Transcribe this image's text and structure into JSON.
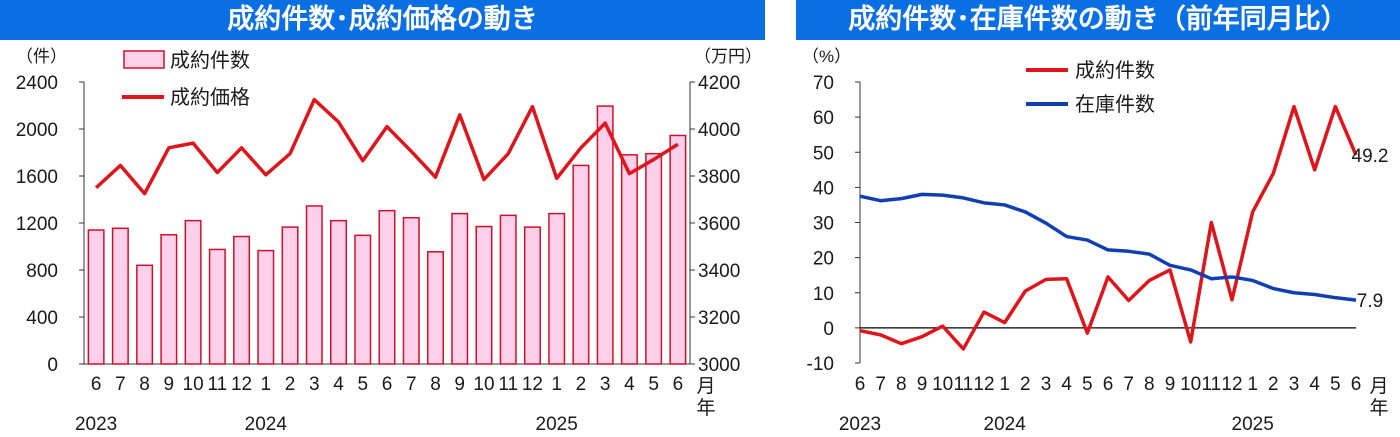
{
  "left_title": "成約件数･成約価格の動き",
  "right_title": "成約件数･在庫件数の動き（前年同月比）",
  "colors": {
    "banner": "#0a6fe2",
    "red": "#e0141b",
    "blue": "#0f3fb0",
    "bar_fill": "#ffd0ea",
    "bar_stroke": "#d0102a"
  },
  "chart_data": [
    {
      "type": "bar",
      "title": "成約件数･成約価格の動き",
      "categories": [
        "6",
        "7",
        "8",
        "9",
        "10",
        "11",
        "12",
        "1",
        "2",
        "3",
        "4",
        "5",
        "6",
        "7",
        "8",
        "9",
        "10",
        "11",
        "12",
        "1",
        "2",
        "3",
        "4",
        "5",
        "6"
      ],
      "year_labels": [
        {
          "label": "2023",
          "index": 0
        },
        {
          "label": "2024",
          "index": 7
        },
        {
          "label": "2025",
          "index": 19
        }
      ],
      "x_unit": "月",
      "x_unit2": "年",
      "y_left_unit": "（件）",
      "y_right_unit": "（万円）",
      "ylim_left": [
        0,
        2400
      ],
      "ylim_right": [
        3000,
        4200
      ],
      "y_left_ticks": [
        "0",
        "400",
        "800",
        "1200",
        "1600",
        "2000",
        "2400"
      ],
      "y_right_ticks": [
        "3000",
        "3200",
        "3400",
        "3600",
        "3800",
        "4000",
        "4200"
      ],
      "legend_placement": "top-left",
      "series": [
        {
          "name": "成約件数",
          "kind": "bar",
          "axis": "left",
          "values": [
            1140,
            1155,
            840,
            1100,
            1220,
            975,
            1085,
            965,
            1165,
            1345,
            1220,
            1095,
            1305,
            1245,
            955,
            1280,
            1170,
            1265,
            1165,
            1280,
            1690,
            2195,
            1780,
            1790,
            1945
          ]
        },
        {
          "name": "成約価格",
          "kind": "line",
          "axis": "right",
          "values": [
            3750,
            3845,
            3725,
            3920,
            3940,
            3815,
            3920,
            3805,
            3895,
            4125,
            4030,
            3865,
            4010,
            3905,
            3795,
            4060,
            3785,
            3895,
            4095,
            3790,
            3920,
            4025,
            3810,
            3870,
            3935
          ]
        }
      ]
    },
    {
      "type": "line",
      "title": "成約件数･在庫件数の動き（前年同月比）",
      "categories": [
        "6",
        "7",
        "8",
        "9",
        "10",
        "11",
        "12",
        "1",
        "2",
        "3",
        "4",
        "5",
        "6",
        "7",
        "8",
        "9",
        "10",
        "11",
        "12",
        "1",
        "2",
        "3",
        "4",
        "5",
        "6"
      ],
      "year_labels": [
        {
          "label": "2023",
          "index": 0
        },
        {
          "label": "2024",
          "index": 7
        },
        {
          "label": "2025",
          "index": 19
        }
      ],
      "x_unit": "月",
      "x_unit2": "年",
      "y_unit": "（%）",
      "ylim": [
        -10,
        70
      ],
      "y_ticks": [
        "-10",
        "0",
        "10",
        "20",
        "30",
        "40",
        "50",
        "60",
        "70"
      ],
      "legend_placement": "top-center",
      "series": [
        {
          "name": "成約件数",
          "values": [
            -0.8,
            -2,
            -4.5,
            -2.5,
            0.5,
            -6,
            4.5,
            1.5,
            10.5,
            13.8,
            14,
            -1.5,
            14.5,
            7.8,
            13.5,
            16.5,
            -4,
            30,
            8,
            33,
            44,
            63,
            45,
            63,
            49.2
          ],
          "end_label": "49.2"
        },
        {
          "name": "在庫件数",
          "values": [
            37.5,
            36.2,
            36.8,
            38,
            37.8,
            37,
            35.6,
            35,
            33,
            29.8,
            26,
            25,
            22.2,
            21.8,
            21,
            17.8,
            16.5,
            14,
            14.5,
            13.5,
            11.2,
            10,
            9.5,
            8.6,
            7.9
          ],
          "end_label": "7.9"
        }
      ]
    }
  ]
}
